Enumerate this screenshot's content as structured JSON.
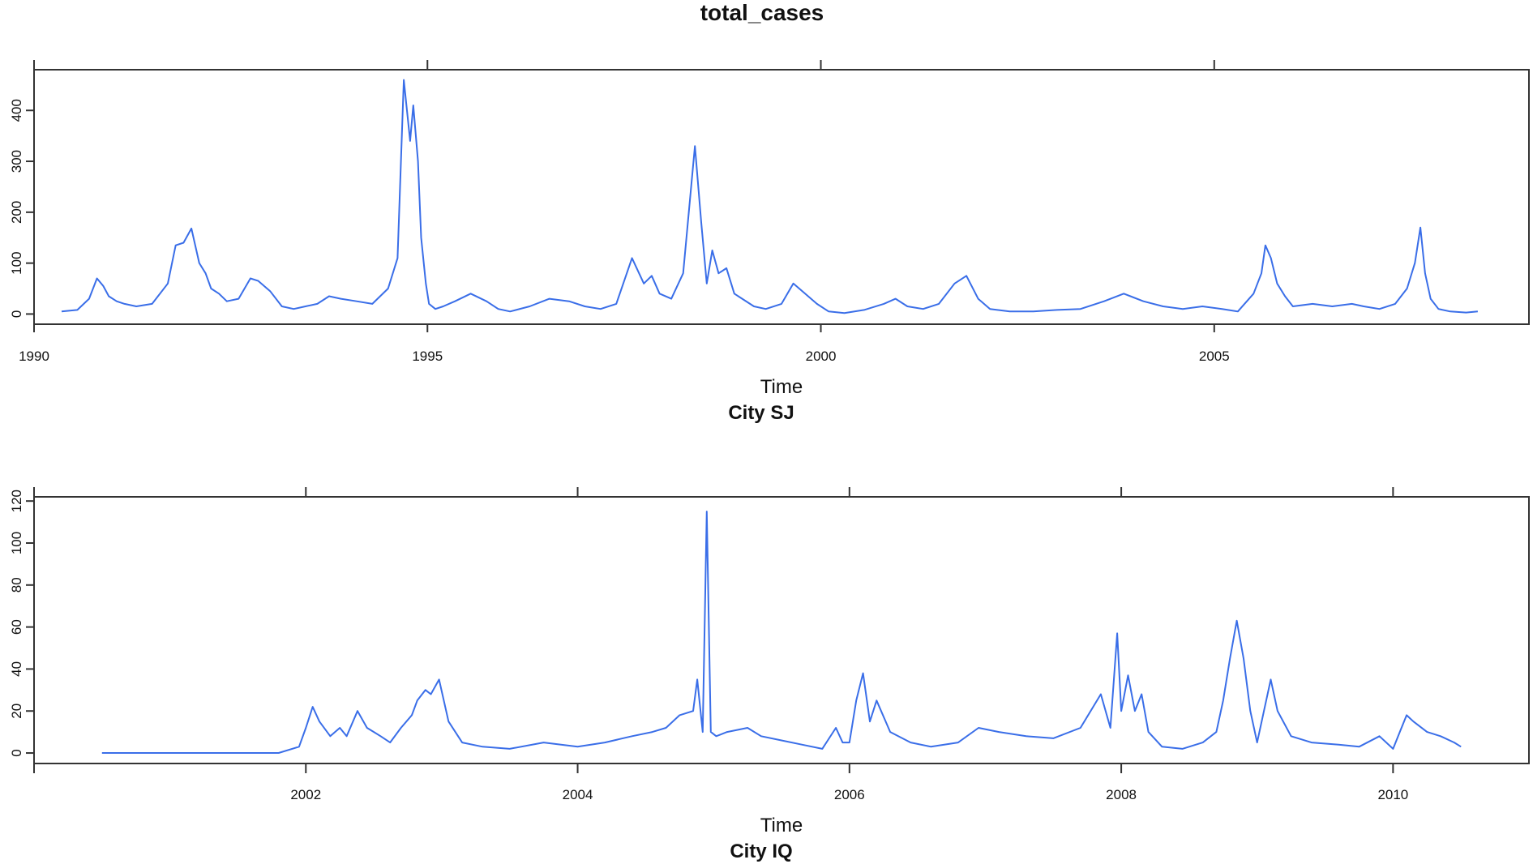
{
  "title": "total_cases",
  "chart_data": [
    {
      "type": "line",
      "subtitle": "City SJ",
      "xlabel": "Time",
      "ylabel": "",
      "xlim": [
        1990.0,
        2009.0
      ],
      "ylim": [
        -20,
        480
      ],
      "x_ticks": [
        1990,
        1995,
        2000,
        2005
      ],
      "x_tick_labels": [
        "1990",
        "1995",
        "2000",
        "2005"
      ],
      "x_top_ticks": [
        1990,
        1995,
        2000,
        2005
      ],
      "y_ticks": [
        0,
        100,
        200,
        300,
        400
      ],
      "y_tick_labels": [
        "0",
        "100",
        "200",
        "300",
        "400"
      ],
      "grid": false,
      "series": [
        {
          "color": "#3a6ee8",
          "x": [
            1990.35,
            1990.55,
            1990.7,
            1990.8,
            1990.88,
            1990.95,
            1991.05,
            1991.15,
            1991.3,
            1991.5,
            1991.7,
            1991.8,
            1991.9,
            1992.0,
            1992.1,
            1992.18,
            1992.25,
            1992.35,
            1992.45,
            1992.6,
            1992.75,
            1992.85,
            1993.0,
            1993.15,
            1993.3,
            1993.45,
            1993.6,
            1993.75,
            1993.9,
            1994.1,
            1994.3,
            1994.5,
            1994.62,
            1994.7,
            1994.78,
            1994.82,
            1994.88,
            1994.92,
            1994.98,
            1995.02,
            1995.1,
            1995.2,
            1995.35,
            1995.55,
            1995.75,
            1995.9,
            1996.05,
            1996.3,
            1996.55,
            1996.8,
            1997.0,
            1997.2,
            1997.4,
            1997.6,
            1997.75,
            1997.85,
            1997.95,
            1998.1,
            1998.25,
            1998.4,
            1998.48,
            1998.55,
            1998.62,
            1998.7,
            1998.8,
            1998.9,
            1999.0,
            1999.15,
            1999.3,
            1999.5,
            1999.65,
            1999.8,
            1999.95,
            2000.1,
            2000.3,
            2000.55,
            2000.8,
            2000.95,
            2001.1,
            2001.3,
            2001.5,
            2001.7,
            2001.85,
            2002.0,
            2002.15,
            2002.4,
            2002.7,
            2003.0,
            2003.3,
            2003.6,
            2003.85,
            2004.1,
            2004.35,
            2004.6,
            2004.85,
            2005.1,
            2005.3,
            2005.5,
            2005.6,
            2005.65,
            2005.72,
            2005.8,
            2005.9,
            2006.0,
            2006.25,
            2006.5,
            2006.75,
            2006.9,
            2007.1,
            2007.3,
            2007.45,
            2007.55,
            2007.62,
            2007.68,
            2007.75,
            2007.85,
            2008.0,
            2008.2,
            2008.35
          ],
          "y": [
            5,
            8,
            30,
            70,
            55,
            35,
            25,
            20,
            15,
            20,
            60,
            135,
            140,
            168,
            100,
            80,
            50,
            40,
            25,
            30,
            70,
            65,
            45,
            15,
            10,
            15,
            20,
            35,
            30,
            25,
            20,
            50,
            110,
            460,
            340,
            410,
            300,
            150,
            60,
            20,
            10,
            15,
            25,
            40,
            25,
            10,
            5,
            15,
            30,
            25,
            15,
            10,
            20,
            110,
            60,
            75,
            40,
            30,
            80,
            330,
            180,
            60,
            125,
            80,
            90,
            40,
            30,
            15,
            10,
            20,
            60,
            40,
            20,
            5,
            2,
            8,
            20,
            30,
            15,
            10,
            20,
            60,
            75,
            30,
            10,
            5,
            5,
            8,
            10,
            25,
            40,
            25,
            15,
            10,
            15,
            10,
            5,
            40,
            80,
            135,
            110,
            60,
            35,
            15,
            20,
            15,
            20,
            15,
            10,
            20,
            50,
            100,
            170,
            80,
            30,
            10,
            5,
            3,
            5
          ]
        }
      ]
    },
    {
      "type": "line",
      "subtitle": "City IQ",
      "xlabel": "Time",
      "ylabel": "",
      "xlim": [
        2000.0,
        2011.0
      ],
      "ylim": [
        -5,
        122
      ],
      "x_ticks": [
        2002,
        2004,
        2006,
        2008,
        2010
      ],
      "x_tick_labels": [
        "2002",
        "2004",
        "2006",
        "2008",
        "2010"
      ],
      "x_top_ticks": [
        2000,
        2002,
        2004,
        2006,
        2008,
        2010
      ],
      "x_bottom_ticks": [
        2000,
        2002,
        2004,
        2006,
        2008,
        2010
      ],
      "y_ticks": [
        0,
        20,
        40,
        60,
        80,
        100,
        120
      ],
      "y_tick_labels": [
        "0",
        "20",
        "40",
        "60",
        "80",
        "100",
        "120"
      ],
      "grid": false,
      "series": [
        {
          "color": "#3a6ee8",
          "x": [
            2000.5,
            2000.8,
            2001.0,
            2001.5,
            2001.8,
            2001.95,
            2002.0,
            2002.05,
            2002.1,
            2002.18,
            2002.25,
            2002.3,
            2002.38,
            2002.45,
            2002.5,
            2002.55,
            2002.62,
            2002.7,
            2002.78,
            2002.82,
            2002.88,
            2002.92,
            2002.98,
            2003.05,
            2003.15,
            2003.3,
            2003.5,
            2003.75,
            2004.0,
            2004.2,
            2004.4,
            2004.55,
            2004.65,
            2004.75,
            2004.85,
            2004.88,
            2004.92,
            2004.95,
            2004.98,
            2005.02,
            2005.1,
            2005.25,
            2005.35,
            2005.5,
            2005.65,
            2005.8,
            2005.9,
            2005.95,
            2006.0,
            2006.05,
            2006.1,
            2006.15,
            2006.2,
            2006.3,
            2006.45,
            2006.6,
            2006.8,
            2006.95,
            2007.1,
            2007.3,
            2007.5,
            2007.7,
            2007.85,
            2007.92,
            2007.97,
            2008.0,
            2008.05,
            2008.1,
            2008.15,
            2008.2,
            2008.3,
            2008.45,
            2008.6,
            2008.7,
            2008.75,
            2008.8,
            2008.85,
            2008.9,
            2008.95,
            2009.0,
            2009.05,
            2009.1,
            2009.15,
            2009.25,
            2009.4,
            2009.6,
            2009.75,
            2009.9,
            2010.0,
            2010.05,
            2010.1,
            2010.15,
            2010.25,
            2010.35,
            2010.45,
            2010.5
          ],
          "y": [
            0,
            0,
            0,
            0,
            0,
            3,
            12,
            22,
            15,
            8,
            12,
            8,
            20,
            12,
            10,
            8,
            5,
            12,
            18,
            25,
            30,
            28,
            35,
            15,
            5,
            3,
            2,
            5,
            3,
            5,
            8,
            10,
            12,
            18,
            20,
            35,
            10,
            115,
            10,
            8,
            10,
            12,
            8,
            6,
            4,
            2,
            12,
            5,
            5,
            25,
            38,
            15,
            25,
            10,
            5,
            3,
            5,
            12,
            10,
            8,
            7,
            12,
            28,
            12,
            57,
            20,
            37,
            20,
            28,
            10,
            3,
            2,
            5,
            10,
            25,
            45,
            63,
            45,
            20,
            5,
            20,
            35,
            20,
            8,
            5,
            4,
            3,
            8,
            2,
            10,
            18,
            15,
            10,
            8,
            5,
            3
          ]
        }
      ]
    }
  ]
}
